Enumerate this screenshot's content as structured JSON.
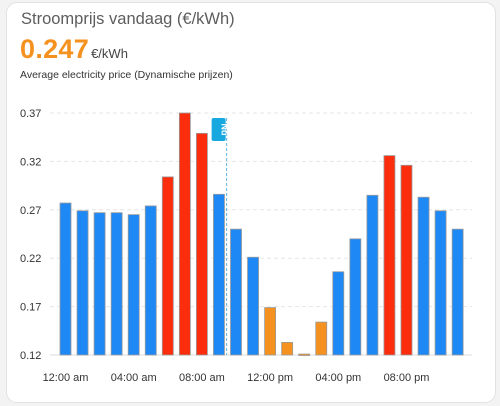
{
  "card": {
    "title": "Stroomprijs vandaag (€/kWh)",
    "current_price": "0.247",
    "price_unit": "€/kWh",
    "subtitle": "Average electricity price (Dynamische prijzen)"
  },
  "colors": {
    "accent": "#f5911e",
    "bar_normal": "#1e88f5",
    "bar_high": "#fb2d0c",
    "bar_low": "#f5911e",
    "now_line": "#5fb2e0",
    "now_label_bg": "#18a8e0"
  },
  "chart_data": {
    "type": "bar",
    "title": "",
    "xlabel": "",
    "ylabel": "",
    "ylim": [
      0.12,
      0.37
    ],
    "y_ticks": [
      "0.37",
      "0.32",
      "0.27",
      "0.22",
      "0.17",
      "0.12"
    ],
    "x_tick_labels": [
      "12:00 am",
      "04:00 am",
      "08:00 am",
      "12:00 pm",
      "04:00 pm",
      "08:00 pm"
    ],
    "x_tick_hours": [
      0,
      4,
      8,
      12,
      16,
      20
    ],
    "grid": true,
    "hours": [
      0,
      1,
      2,
      3,
      4,
      5,
      6,
      7,
      8,
      9,
      10,
      11,
      12,
      13,
      14,
      15,
      16,
      17,
      18,
      19,
      20,
      21,
      22,
      23
    ],
    "values": [
      0.277,
      0.269,
      0.267,
      0.267,
      0.265,
      0.274,
      0.304,
      0.37,
      0.349,
      0.286,
      0.25,
      0.221,
      0.169,
      0.133,
      0.121,
      0.154,
      0.206,
      0.24,
      0.285,
      0.326,
      0.316,
      0.283,
      0.269,
      0.25
    ],
    "levels": [
      "normal",
      "normal",
      "normal",
      "normal",
      "normal",
      "normal",
      "high",
      "high",
      "high",
      "normal",
      "normal",
      "normal",
      "low",
      "low",
      "low",
      "low",
      "normal",
      "normal",
      "normal",
      "high",
      "high",
      "normal",
      "normal",
      "normal"
    ],
    "now_marker": {
      "label": "Nu",
      "hour": 9.45
    }
  }
}
